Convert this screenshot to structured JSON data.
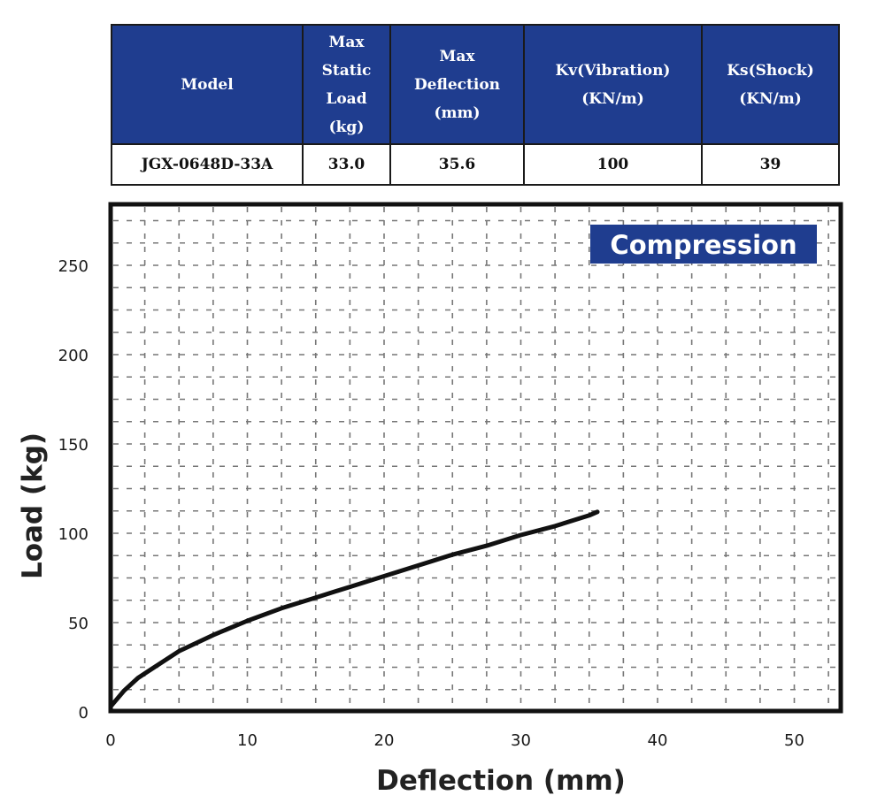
{
  "spec_table": {
    "headers": [
      [
        "Model"
      ],
      [
        "Max",
        "Static",
        "Load",
        "(kg)"
      ],
      [
        "Max",
        "Deflection",
        "(mm)"
      ],
      [
        "Kv(Vibration)",
        "(KN/m)"
      ],
      [
        "Ks(Shock)",
        "(KN/m)"
      ]
    ],
    "row": [
      "JGX-0648D-33A",
      "33.0",
      "35.6",
      "100",
      "39"
    ]
  },
  "colors": {
    "header_bg": "#1f3d8f",
    "header_text": "#ffffff",
    "curve": "#111111",
    "grid": "#777777",
    "frame": "#111111",
    "legend_bg": "#1f3d8f"
  },
  "chart_data": {
    "type": "line",
    "title": "",
    "legend": [
      "Compression"
    ],
    "legend_position": "top-right",
    "xlabel": "Deflection (mm)",
    "ylabel": "Load (kg)",
    "xlim": [
      0,
      53
    ],
    "ylim": [
      0,
      285
    ],
    "grid": true,
    "grid_style": "dashed",
    "x_ticks": [
      0,
      10,
      20,
      30,
      40,
      50
    ],
    "y_ticks": [
      0,
      50,
      100,
      150,
      200,
      250
    ],
    "x_tick_labels": [
      "0",
      "10",
      "20",
      "30",
      "40",
      "50"
    ],
    "y_tick_labels": [
      "0",
      "50",
      "100",
      "150",
      "200",
      "250"
    ],
    "series": [
      {
        "name": "Compression",
        "x": [
          0,
          1,
          2,
          3,
          5,
          7.5,
          10,
          12.5,
          15,
          17.5,
          20,
          22.5,
          25,
          27.5,
          30,
          32.5,
          35,
          35.6
        ],
        "y": [
          3,
          12,
          19,
          24,
          34,
          43,
          51,
          58,
          64,
          70,
          76,
          82,
          88,
          93,
          99,
          104,
          110,
          112
        ]
      }
    ]
  }
}
